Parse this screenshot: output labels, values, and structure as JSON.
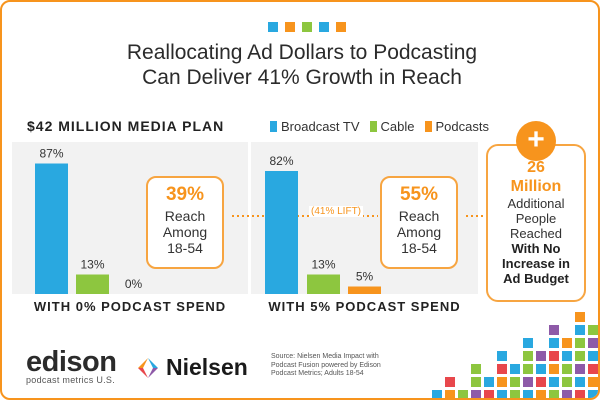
{
  "top_dots": [
    "#29a8e0",
    "#f7941d",
    "#8dc63f",
    "#29a8e0",
    "#f7941d"
  ],
  "title_line1": "Reallocating Ad Dollars to Podcasting",
  "title_line2": "Can Deliver 41% Growth in Reach",
  "plan_title": "$42 MILLION MEDIA PLAN",
  "legend": [
    {
      "label": "Broadcast TV",
      "color": "#29a8e0"
    },
    {
      "label": "Cable",
      "color": "#8dc63f"
    },
    {
      "label": "Podcasts",
      "color": "#f7941d"
    }
  ],
  "chart_data": [
    {
      "type": "bar",
      "title": "WITH 0% PODCAST SPEND",
      "categories": [
        "Broadcast TV",
        "Cable",
        "Podcasts"
      ],
      "values": [
        87,
        13,
        0
      ],
      "labels": [
        "87%",
        "13%",
        "0%"
      ],
      "ylim": [
        0,
        100
      ]
    },
    {
      "type": "bar",
      "title": "WITH 5% PODCAST SPEND",
      "categories": [
        "Broadcast TV",
        "Cable",
        "Podcasts"
      ],
      "values": [
        82,
        13,
        5
      ],
      "labels": [
        "82%",
        "13%",
        "5%"
      ],
      "ylim": [
        0,
        100
      ]
    }
  ],
  "reach_left": {
    "pct": "39%",
    "line1": "Reach",
    "line2": "Among",
    "line3": "18-54"
  },
  "reach_right": {
    "pct": "55%",
    "line1": "Reach",
    "line2": "Among",
    "line3": "18-54"
  },
  "lift_label": "(41% LIFT)",
  "plus_symbol": "+",
  "summary": {
    "number": "26",
    "unit": "Million",
    "line1": "Additional",
    "line2": "People",
    "line3": "Reached",
    "strong1": "With No",
    "strong2": "Increase in",
    "strong3": "Ad Budget"
  },
  "edison_logo": {
    "word": "edison",
    "sub": "podcast metrics U.S."
  },
  "nielsen_logo": {
    "word": "Nielsen"
  },
  "source_text": "Source: Nielsen Media Impact with Podcast Fusion powered by Edison Podcast Metrics; Adults 18-54",
  "accent_orange": "#f7941d",
  "accent_blue": "#29a8e0",
  "accent_green": "#8dc63f",
  "accent_purple": "#8e5aa8"
}
